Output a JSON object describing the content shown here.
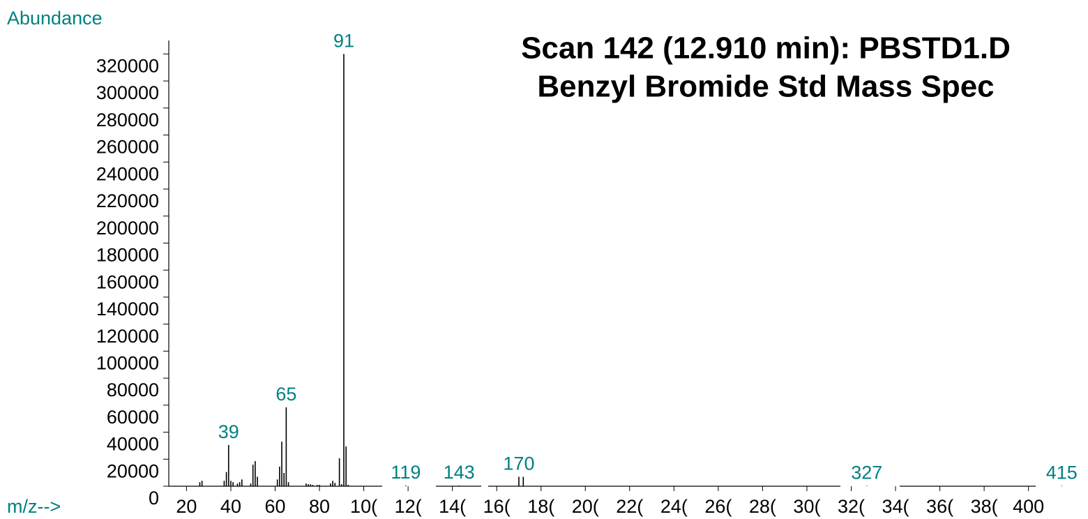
{
  "chart_data": {
    "type": "bar",
    "title": "Scan 142 (12.910 min): PBSTD1.D",
    "subtitle": "Benzyl Bromide Std Mass Spec",
    "y_label": "Abundance",
    "x_label": "m/z-->",
    "x": [
      26,
      27,
      37,
      38,
      39,
      40,
      41,
      43,
      44,
      45,
      49,
      50,
      51,
      52,
      61,
      62,
      63,
      64,
      65,
      66,
      74,
      75,
      76,
      77,
      79,
      80,
      85,
      86,
      87,
      89,
      90,
      91,
      92,
      93,
      119,
      143,
      170,
      172,
      327,
      415
    ],
    "values": [
      3000,
      4000,
      4000,
      10500,
      30500,
      4000,
      3000,
      2000,
      3000,
      5000,
      2000,
      16000,
      18600,
      7000,
      5000,
      14500,
      33000,
      9800,
      58400,
      3000,
      2000,
      1500,
      1500,
      1000,
      1000,
      1000,
      2000,
      4000,
      2500,
      20700,
      1500,
      320000,
      29400,
      1000,
      500,
      500,
      7000,
      7000,
      300,
      300
    ],
    "peak_labels": [
      39,
      65,
      91,
      119,
      143,
      170,
      327,
      415
    ],
    "color": "#000000",
    "label_color": "#008080",
    "xlim": [
      12,
      419
    ],
    "ylim": [
      0,
      330000
    ],
    "xticks": [
      {
        "value": 20,
        "label": "20"
      },
      {
        "value": 40,
        "label": "40"
      },
      {
        "value": 60,
        "label": "60"
      },
      {
        "value": 80,
        "label": "80"
      },
      {
        "value": 100,
        "label": "10("
      },
      {
        "value": 120,
        "label": "12("
      },
      {
        "value": 140,
        "label": "14("
      },
      {
        "value": 160,
        "label": "16("
      },
      {
        "value": 180,
        "label": "18("
      },
      {
        "value": 200,
        "label": "20("
      },
      {
        "value": 220,
        "label": "22("
      },
      {
        "value": 240,
        "label": "24("
      },
      {
        "value": 260,
        "label": "26("
      },
      {
        "value": 280,
        "label": "28("
      },
      {
        "value": 300,
        "label": "30("
      },
      {
        "value": 320,
        "label": "32("
      },
      {
        "value": 340,
        "label": "34("
      },
      {
        "value": 360,
        "label": "36("
      },
      {
        "value": 380,
        "label": "38("
      },
      {
        "value": 400,
        "label": "400"
      }
    ],
    "yticks": [
      0,
      20000,
      40000,
      60000,
      80000,
      100000,
      120000,
      140000,
      160000,
      180000,
      200000,
      220000,
      240000,
      260000,
      280000,
      300000,
      320000
    ],
    "grid": false
  }
}
